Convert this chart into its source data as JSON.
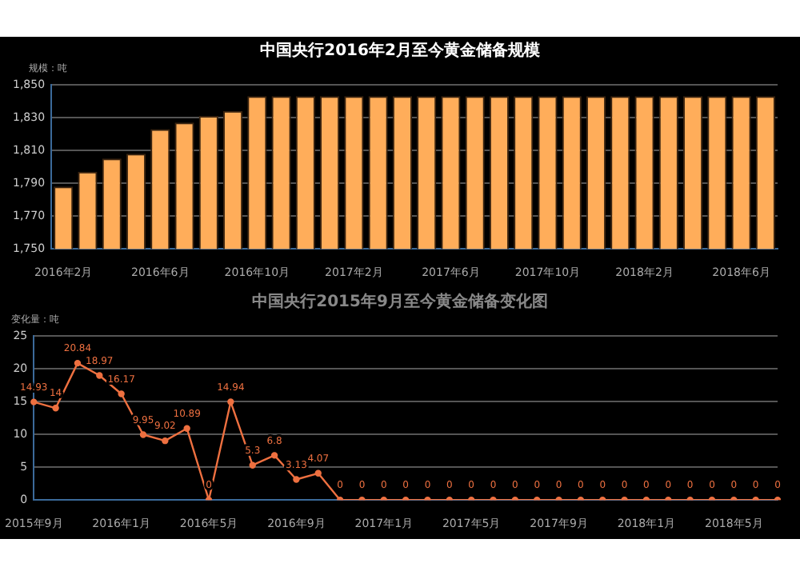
{
  "chart_data": [
    {
      "type": "bar",
      "title": "中国央行2016年2月至今黄金储备规模",
      "ylabel": "规模：吨",
      "categories": [
        "2016年2月",
        null,
        null,
        null,
        "2016年6月",
        null,
        null,
        null,
        "2016年10月",
        null,
        null,
        null,
        "2017年2月",
        null,
        null,
        null,
        "2017年6月",
        null,
        null,
        null,
        "2017年10月",
        null,
        null,
        null,
        "2018年2月",
        null,
        null,
        null,
        "2018年6月",
        null
      ],
      "values": [
        1788,
        1797,
        1805,
        1808,
        1823,
        1827,
        1831,
        1834,
        1843,
        1843,
        1843,
        1843,
        1843,
        1843,
        1843,
        1843,
        1843,
        1843,
        1843,
        1843,
        1843,
        1843,
        1843,
        1843,
        1843,
        1843,
        1843,
        1843,
        1843,
        1843
      ],
      "color": "#ffad5a",
      "ylim": [
        1750,
        1850
      ],
      "yticks": [
        {
          "value": 1750,
          "label": "1,750"
        },
        {
          "value": 1770,
          "label": "1,770"
        },
        {
          "value": 1790,
          "label": "1,790"
        },
        {
          "value": 1810,
          "label": "1,810"
        },
        {
          "value": 1830,
          "label": "1,830"
        },
        {
          "value": 1850,
          "label": "1,850"
        }
      ],
      "grid": "y",
      "legend": false
    },
    {
      "type": "line",
      "title": "中国央行2015年9月至今黄金储备变化图",
      "ylabel": "变化量：吨",
      "categories": [
        "2015年9月",
        null,
        null,
        null,
        "2016年1月",
        null,
        null,
        null,
        "2016年5月",
        null,
        null,
        null,
        "2016年9月",
        null,
        null,
        null,
        "2017年1月",
        null,
        null,
        null,
        "2017年5月",
        null,
        null,
        null,
        "2017年9月",
        null,
        null,
        null,
        "2018年1月",
        null,
        null,
        null,
        "2018年5月",
        null,
        null
      ],
      "values": [
        14.93,
        14,
        20.84,
        18.97,
        16.17,
        9.95,
        9.02,
        10.89,
        0,
        14.94,
        5.3,
        6.8,
        3.13,
        4.07,
        0,
        0,
        0,
        0,
        0,
        0,
        0,
        0,
        0,
        0,
        0,
        0,
        0,
        0,
        0,
        0,
        0,
        0,
        0,
        0,
        0
      ],
      "color": "#ee7040",
      "ylim": [
        0,
        25
      ],
      "yticks": [
        0,
        5,
        10,
        15,
        20,
        25
      ],
      "grid": "y",
      "legend": false,
      "marker": "circle",
      "line_style": "solid",
      "data_labels": true
    }
  ]
}
